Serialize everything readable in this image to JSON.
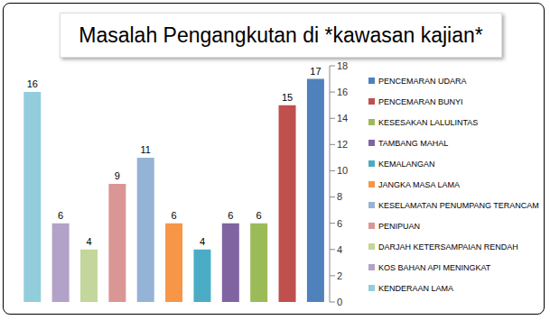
{
  "chart_data": {
    "type": "bar",
    "title": "Masalah Pengangkutan di *kawasan kajian*",
    "categories": [
      "KENDERAAN LAMA",
      "KOS BAHAN API MENINGKAT",
      "DARJAH KETERSAMPAIAN RENDAH",
      "PENIPUAN",
      "KESELAMATAN PENUMPANG TERANCAM",
      "JANGKA MASA LAMA",
      "KEMALANGAN",
      "TAMBANG MAHAL",
      "KESESAKAN LALULINTAS",
      "PENCEMARAN BUNYI",
      "PENCEMARAN UDARA"
    ],
    "values": [
      16,
      6,
      4,
      9,
      11,
      6,
      4,
      6,
      6,
      15,
      17
    ],
    "colors": [
      "#92cddc",
      "#b3a2c7",
      "#c3d69b",
      "#d99694",
      "#95b3d7",
      "#f79646",
      "#4bacc6",
      "#8064a2",
      "#9bbb59",
      "#c0504d",
      "#4f81bd"
    ],
    "ylim": [
      0,
      18
    ],
    "yticks": [
      0,
      2,
      4,
      6,
      8,
      10,
      12,
      14,
      16,
      18
    ],
    "grid": false,
    "legend": "right",
    "data_labels": true,
    "tick_labels": "y"
  }
}
